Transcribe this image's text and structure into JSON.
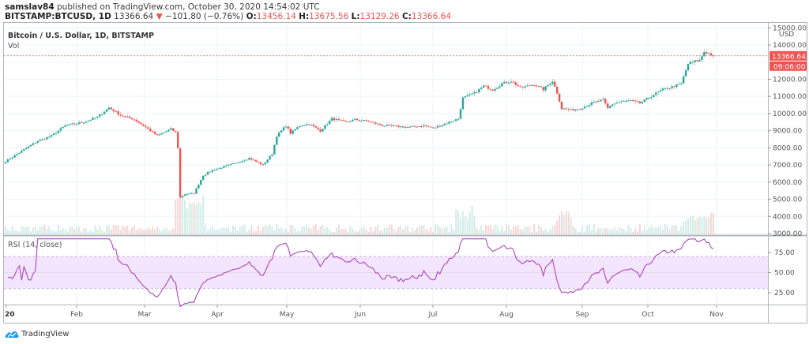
{
  "header": {
    "author": "samslav84",
    "published": "published on TradingView.com, October 30, 2020 14:54:02 UTC",
    "symbol": "BITSTAMP:BTCUSD, 1D",
    "last": "13366.64",
    "change": "−101.80 (−0.76%)",
    "o_label": "O:",
    "o": "13456.14",
    "h_label": "H:",
    "h": "13675.56",
    "l_label": "L:",
    "l": "13129.26",
    "c_label": "C:",
    "c": "13366.64"
  },
  "legend": {
    "title": "Bitcoin / U.S. Dollar, 1D, BITSTAMP",
    "vol": "Vol"
  },
  "rsi_label": "RSI (14, close)",
  "price_axis": {
    "currency": "USD",
    "last_price": "13366.64",
    "countdown": "09:06:00"
  },
  "logo": "TradingView",
  "colors": {
    "up": "#26a69a",
    "down": "#ef5350",
    "rsi_line": "#ab47bc",
    "rsi_band": "#f3e5fd",
    "grid": "#eef3f7",
    "axis": "#9598a1"
  },
  "chart_data": [
    {
      "type": "candlestick",
      "title": "Bitcoin / U.S. Dollar, 1D, BITSTAMP",
      "ylabel": "USD",
      "ylim": [
        3000,
        15000
      ],
      "y_ticks": [
        3000,
        4000,
        5000,
        6000,
        7000,
        8000,
        9000,
        10000,
        11000,
        12000,
        13000,
        14000,
        15000
      ],
      "x_ticks": [
        "20",
        "Feb",
        "Mar",
        "Apr",
        "May",
        "Jun",
        "Jul",
        "Aug",
        "Sep",
        "Oct",
        "Nov"
      ],
      "last_price": 13366.64,
      "approx_monthly_close": {
        "Jan": 9350,
        "Feb": 8550,
        "Mar": 6400,
        "Apr": 8650,
        "May": 9450,
        "Jun": 9150,
        "Jul": 11350,
        "Aug": 11650,
        "Sep": 10780,
        "Oct": 13366
      },
      "key_points": [
        {
          "label": "Start (Jan 1)",
          "value": 7200
        },
        {
          "label": "Feb peak",
          "value": 10450
        },
        {
          "label": "Mar low",
          "value": 3850
        },
        {
          "label": "Aug high",
          "value": 12400
        },
        {
          "label": "Sep low",
          "value": 9850
        },
        {
          "label": "Oct high",
          "value": 13850
        }
      ]
    },
    {
      "type": "bar",
      "title": "Vol",
      "note": "Volume bars, colored by candle direction"
    },
    {
      "type": "line",
      "title": "RSI (14, close)",
      "ylim": [
        0,
        100
      ],
      "y_ticks": [
        25,
        50,
        75
      ],
      "bands": [
        30,
        70
      ],
      "key_points": [
        {
          "label": "Mar low",
          "value": 15
        },
        {
          "label": "Late Jul high",
          "value": 86
        },
        {
          "label": "Late Oct high",
          "value": 84
        },
        {
          "label": "End",
          "value": 71
        }
      ]
    }
  ]
}
